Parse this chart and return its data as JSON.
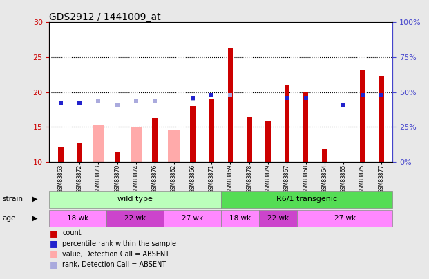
{
  "title": "GDS2912 / 1441009_at",
  "samples": [
    "GSM83863",
    "GSM83872",
    "GSM83873",
    "GSM83870",
    "GSM83874",
    "GSM83876",
    "GSM83862",
    "GSM83866",
    "GSM83871",
    "GSM83869",
    "GSM83878",
    "GSM83879",
    "GSM83867",
    "GSM83868",
    "GSM83864",
    "GSM83865",
    "GSM83875",
    "GSM83877"
  ],
  "count_values": [
    12.2,
    12.8,
    null,
    11.5,
    null,
    16.3,
    null,
    18.0,
    19.0,
    26.4,
    16.4,
    15.8,
    21.0,
    20.0,
    11.8,
    null,
    23.2,
    22.2
  ],
  "rank_values": [
    42.0,
    42.0,
    null,
    null,
    null,
    null,
    null,
    46.0,
    48.0,
    null,
    null,
    null,
    46.0,
    46.0,
    null,
    41.0,
    48.0,
    48.0
  ],
  "absent_count": [
    null,
    null,
    15.2,
    null,
    15.0,
    null,
    14.5,
    null,
    null,
    null,
    null,
    null,
    null,
    null,
    null,
    null,
    null,
    null
  ],
  "absent_rank": [
    null,
    null,
    44.0,
    41.0,
    44.0,
    44.0,
    null,
    45.0,
    null,
    48.0,
    null,
    null,
    null,
    null,
    null,
    null,
    null,
    null
  ],
  "ylim_left": [
    10,
    30
  ],
  "ylim_right": [
    0,
    100
  ],
  "yticks_left": [
    10,
    15,
    20,
    25,
    30
  ],
  "yticks_right": [
    0,
    25,
    50,
    75,
    100
  ],
  "ytick_labels_right": [
    "0%",
    "25%",
    "50%",
    "75%",
    "100%"
  ],
  "strain_groups": [
    {
      "label": "wild type",
      "start": 0,
      "end": 9,
      "color": "#bbffbb"
    },
    {
      "label": "R6/1 transgenic",
      "start": 9,
      "end": 18,
      "color": "#55dd55"
    }
  ],
  "age_groups": [
    {
      "label": "18 wk",
      "start": 0,
      "end": 3,
      "color": "#ff88ff"
    },
    {
      "label": "22 wk",
      "start": 3,
      "end": 6,
      "color": "#cc44cc"
    },
    {
      "label": "27 wk",
      "start": 6,
      "end": 9,
      "color": "#ff88ff"
    },
    {
      "label": "18 wk",
      "start": 9,
      "end": 11,
      "color": "#ff88ff"
    },
    {
      "label": "22 wk",
      "start": 11,
      "end": 13,
      "color": "#cc44cc"
    },
    {
      "label": "27 wk",
      "start": 13,
      "end": 18,
      "color": "#ff88ff"
    }
  ],
  "count_color": "#cc0000",
  "rank_color": "#2222cc",
  "absent_count_color": "#ffaaaa",
  "absent_rank_color": "#aaaadd",
  "bg_color": "#e8e8e8",
  "plot_bg": "#ffffff",
  "left_axis_color": "#cc0000",
  "right_axis_color": "#4444cc",
  "legend_items": [
    {
      "color": "#cc0000",
      "label": "count"
    },
    {
      "color": "#2222cc",
      "label": "percentile rank within the sample"
    },
    {
      "color": "#ffaaaa",
      "label": "value, Detection Call = ABSENT"
    },
    {
      "color": "#aaaadd",
      "label": "rank, Detection Call = ABSENT"
    }
  ]
}
